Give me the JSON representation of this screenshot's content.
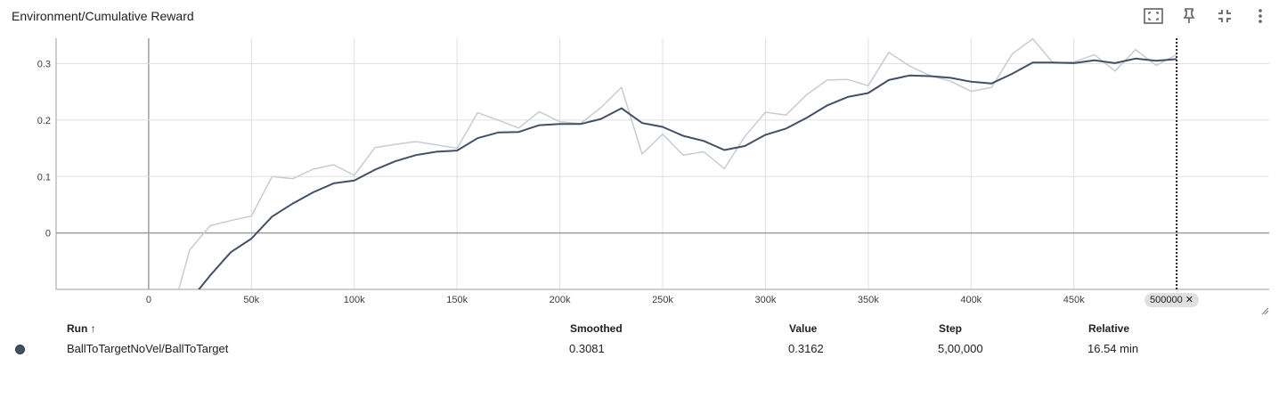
{
  "card": {
    "title": "Environment/Cumulative Reward"
  },
  "toolbar": {
    "icons": [
      "fullscreen-icon",
      "pin-icon",
      "collapse-icon",
      "more-vert-icon"
    ]
  },
  "colors": {
    "smoothed": "#425066",
    "raw": "#c7cbd6",
    "grid": "#e0e0e0",
    "axis": "#9e9e9e"
  },
  "chart_data": {
    "type": "line",
    "title": "Environment/Cumulative Reward",
    "xlabel": "",
    "ylabel": "",
    "xlim": [
      -45000,
      545000
    ],
    "ylim": [
      -0.1,
      0.345
    ],
    "x_ticks": [
      "0",
      "50k",
      "100k",
      "150k",
      "200k",
      "250k",
      "300k",
      "350k",
      "400k",
      "450k"
    ],
    "x_tick_values": [
      0,
      50000,
      100000,
      150000,
      200000,
      250000,
      300000,
      350000,
      400000,
      450000
    ],
    "y_ticks": [
      "0",
      "0.1",
      "0.2",
      "0.3"
    ],
    "y_tick_values": [
      0,
      0.1,
      0.2,
      0.3
    ],
    "grid": true,
    "cursor_step": 500000,
    "cursor_label": "500000",
    "x": [
      10000,
      20000,
      30000,
      40000,
      50000,
      60000,
      70000,
      80000,
      90000,
      100000,
      110000,
      120000,
      130000,
      140000,
      150000,
      160000,
      170000,
      180000,
      190000,
      200000,
      210000,
      220000,
      230000,
      240000,
      250000,
      260000,
      270000,
      280000,
      290000,
      300000,
      310000,
      320000,
      330000,
      340000,
      350000,
      360000,
      370000,
      380000,
      390000,
      400000,
      410000,
      420000,
      430000,
      440000,
      450000,
      460000,
      470000,
      480000,
      490000,
      500000
    ],
    "series": [
      {
        "role": "raw",
        "values": [
          -0.16,
          -0.03,
          0.013,
          0.022,
          0.03,
          0.1,
          0.096,
          0.113,
          0.121,
          0.102,
          0.151,
          0.157,
          0.162,
          0.156,
          0.15,
          0.213,
          0.2,
          0.186,
          0.215,
          0.197,
          0.194,
          0.222,
          0.258,
          0.14,
          0.175,
          0.138,
          0.144,
          0.114,
          0.171,
          0.214,
          0.209,
          0.245,
          0.271,
          0.272,
          0.261,
          0.32,
          0.296,
          0.279,
          0.269,
          0.251,
          0.258,
          0.317,
          0.344,
          0.301,
          0.303,
          0.316,
          0.287,
          0.325,
          0.297,
          0.316
        ]
      },
      {
        "role": "smoothed",
        "values": [
          -0.16,
          -0.12,
          -0.075,
          -0.034,
          -0.01,
          0.029,
          0.052,
          0.072,
          0.088,
          0.093,
          0.112,
          0.127,
          0.138,
          0.144,
          0.146,
          0.168,
          0.178,
          0.179,
          0.191,
          0.193,
          0.193,
          0.202,
          0.221,
          0.195,
          0.188,
          0.172,
          0.163,
          0.147,
          0.154,
          0.174,
          0.185,
          0.204,
          0.226,
          0.241,
          0.248,
          0.271,
          0.279,
          0.278,
          0.275,
          0.268,
          0.265,
          0.282,
          0.302,
          0.302,
          0.301,
          0.306,
          0.301,
          0.309,
          0.305,
          0.3081
        ]
      }
    ]
  },
  "table": {
    "headers": {
      "run": "Run ↑",
      "smoothed": "Smoothed",
      "value": "Value",
      "step": "Step",
      "relative": "Relative"
    },
    "rows": [
      {
        "run": "BallToTargetNoVel/BallToTarget",
        "smoothed": "0.3081",
        "value": "0.3162",
        "step": "5,00,000",
        "relative": "16.54 min",
        "color": "#425066"
      }
    ]
  }
}
